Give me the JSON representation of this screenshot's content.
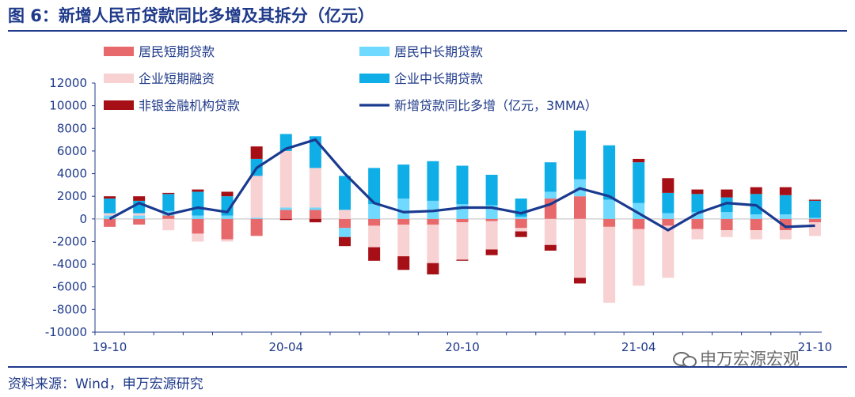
{
  "title": "图 6：新增人民币贷款同比多增及其拆分（亿元）",
  "source": "资料来源：Wind，申万宏源研究",
  "watermark": "申万宏源宏观",
  "colors": {
    "household_short": "#e8696b",
    "household_mid_long": "#6fd9ff",
    "corporate_short": "#f8d1d3",
    "corporate_mid_long": "#10aee6",
    "nonbank": "#a50f15",
    "line": "#1a3a8f"
  },
  "chart_data": {
    "type": "bar",
    "stacked": true,
    "ylim": [
      -10000,
      12000
    ],
    "yticks": [
      -10000,
      -8000,
      -6000,
      -4000,
      -2000,
      0,
      2000,
      4000,
      6000,
      8000,
      10000,
      12000
    ],
    "x": [
      "19-10",
      "19-11",
      "19-12",
      "20-01",
      "20-02",
      "20-03",
      "20-04",
      "20-05",
      "20-06",
      "20-07",
      "20-08",
      "20-09",
      "20-10",
      "20-11",
      "20-12",
      "21-01",
      "21-02",
      "21-03",
      "21-04",
      "21-05",
      "21-06",
      "21-07",
      "21-08",
      "21-09",
      "21-10"
    ],
    "xtick_labels": [
      "19-10",
      "20-04",
      "20-10",
      "21-04",
      "21-10"
    ],
    "legend_placement": "top",
    "series": [
      {
        "name": "居民短期贷款",
        "key": "household_short",
        "values": [
          -700,
          -500,
          300,
          -1300,
          -1800,
          -1500,
          800,
          800,
          -800,
          -600,
          -500,
          -500,
          -300,
          -200,
          -800,
          1800,
          2000,
          -700,
          -900,
          -600,
          -900,
          -1000,
          -1000,
          -1000,
          -300
        ]
      },
      {
        "name": "居民中长期贷款",
        "key": "household_mid_long",
        "values": [
          300,
          300,
          400,
          300,
          300,
          100,
          200,
          200,
          -800,
          1300,
          1800,
          1600,
          1300,
          1200,
          200,
          600,
          1500,
          1700,
          1400,
          500,
          600,
          600,
          400,
          400,
          100
        ]
      },
      {
        "name": "企业短期融资",
        "key": "corporate_short",
        "values": [
          200,
          200,
          -1000,
          -700,
          -200,
          3700,
          5000,
          3500,
          800,
          -1900,
          -2800,
          -3400,
          -3300,
          -2500,
          -300,
          -2300,
          -5200,
          -6700,
          -5000,
          -4600,
          -900,
          -600,
          -800,
          -800,
          -1200
        ]
      },
      {
        "name": "企业中长期贷款",
        "key": "corporate_mid_long",
        "values": [
          1300,
          1100,
          1500,
          2100,
          1700,
          1500,
          1500,
          2800,
          3000,
          3200,
          3000,
          3500,
          3400,
          2700,
          1600,
          2600,
          4300,
          4800,
          3600,
          1800,
          1600,
          1300,
          1800,
          1700,
          1500
        ]
      },
      {
        "name": "非银金融机构贷款",
        "key": "nonbank",
        "values": [
          200,
          400,
          100,
          200,
          400,
          1100,
          -100,
          -300,
          -800,
          -1200,
          -1200,
          -1000,
          -100,
          -500,
          -500,
          -500,
          -500,
          0,
          300,
          1300,
          400,
          700,
          600,
          700,
          100
        ]
      }
    ],
    "line_series": {
      "name": "新增贷款同比多增（亿元，3MMA）",
      "key": "line",
      "values": [
        0,
        1400,
        400,
        1000,
        600,
        4500,
        6200,
        7000,
        4000,
        1400,
        600,
        700,
        1000,
        1000,
        500,
        1300,
        2700,
        2000,
        500,
        -1000,
        500,
        1400,
        1200,
        -700,
        -600
      ]
    }
  }
}
